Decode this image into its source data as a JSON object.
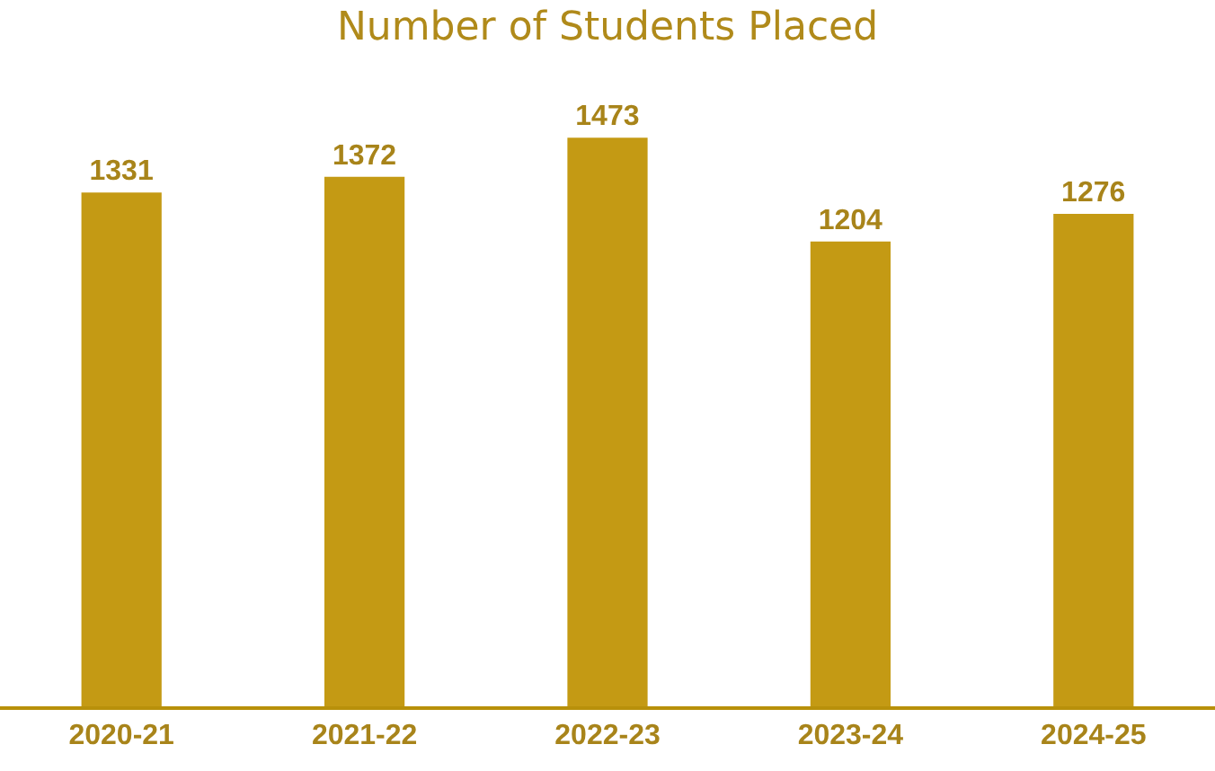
{
  "chart_data": {
    "type": "bar",
    "title": "Number of Students Placed",
    "categories": [
      "2020-21",
      "2021-22",
      "2022-23",
      "2023-24",
      "2024-25"
    ],
    "values": [
      1331,
      1372,
      1473,
      1204,
      1276
    ],
    "color": "#c49a14",
    "data_labels": true,
    "tick_labels": "x"
  }
}
